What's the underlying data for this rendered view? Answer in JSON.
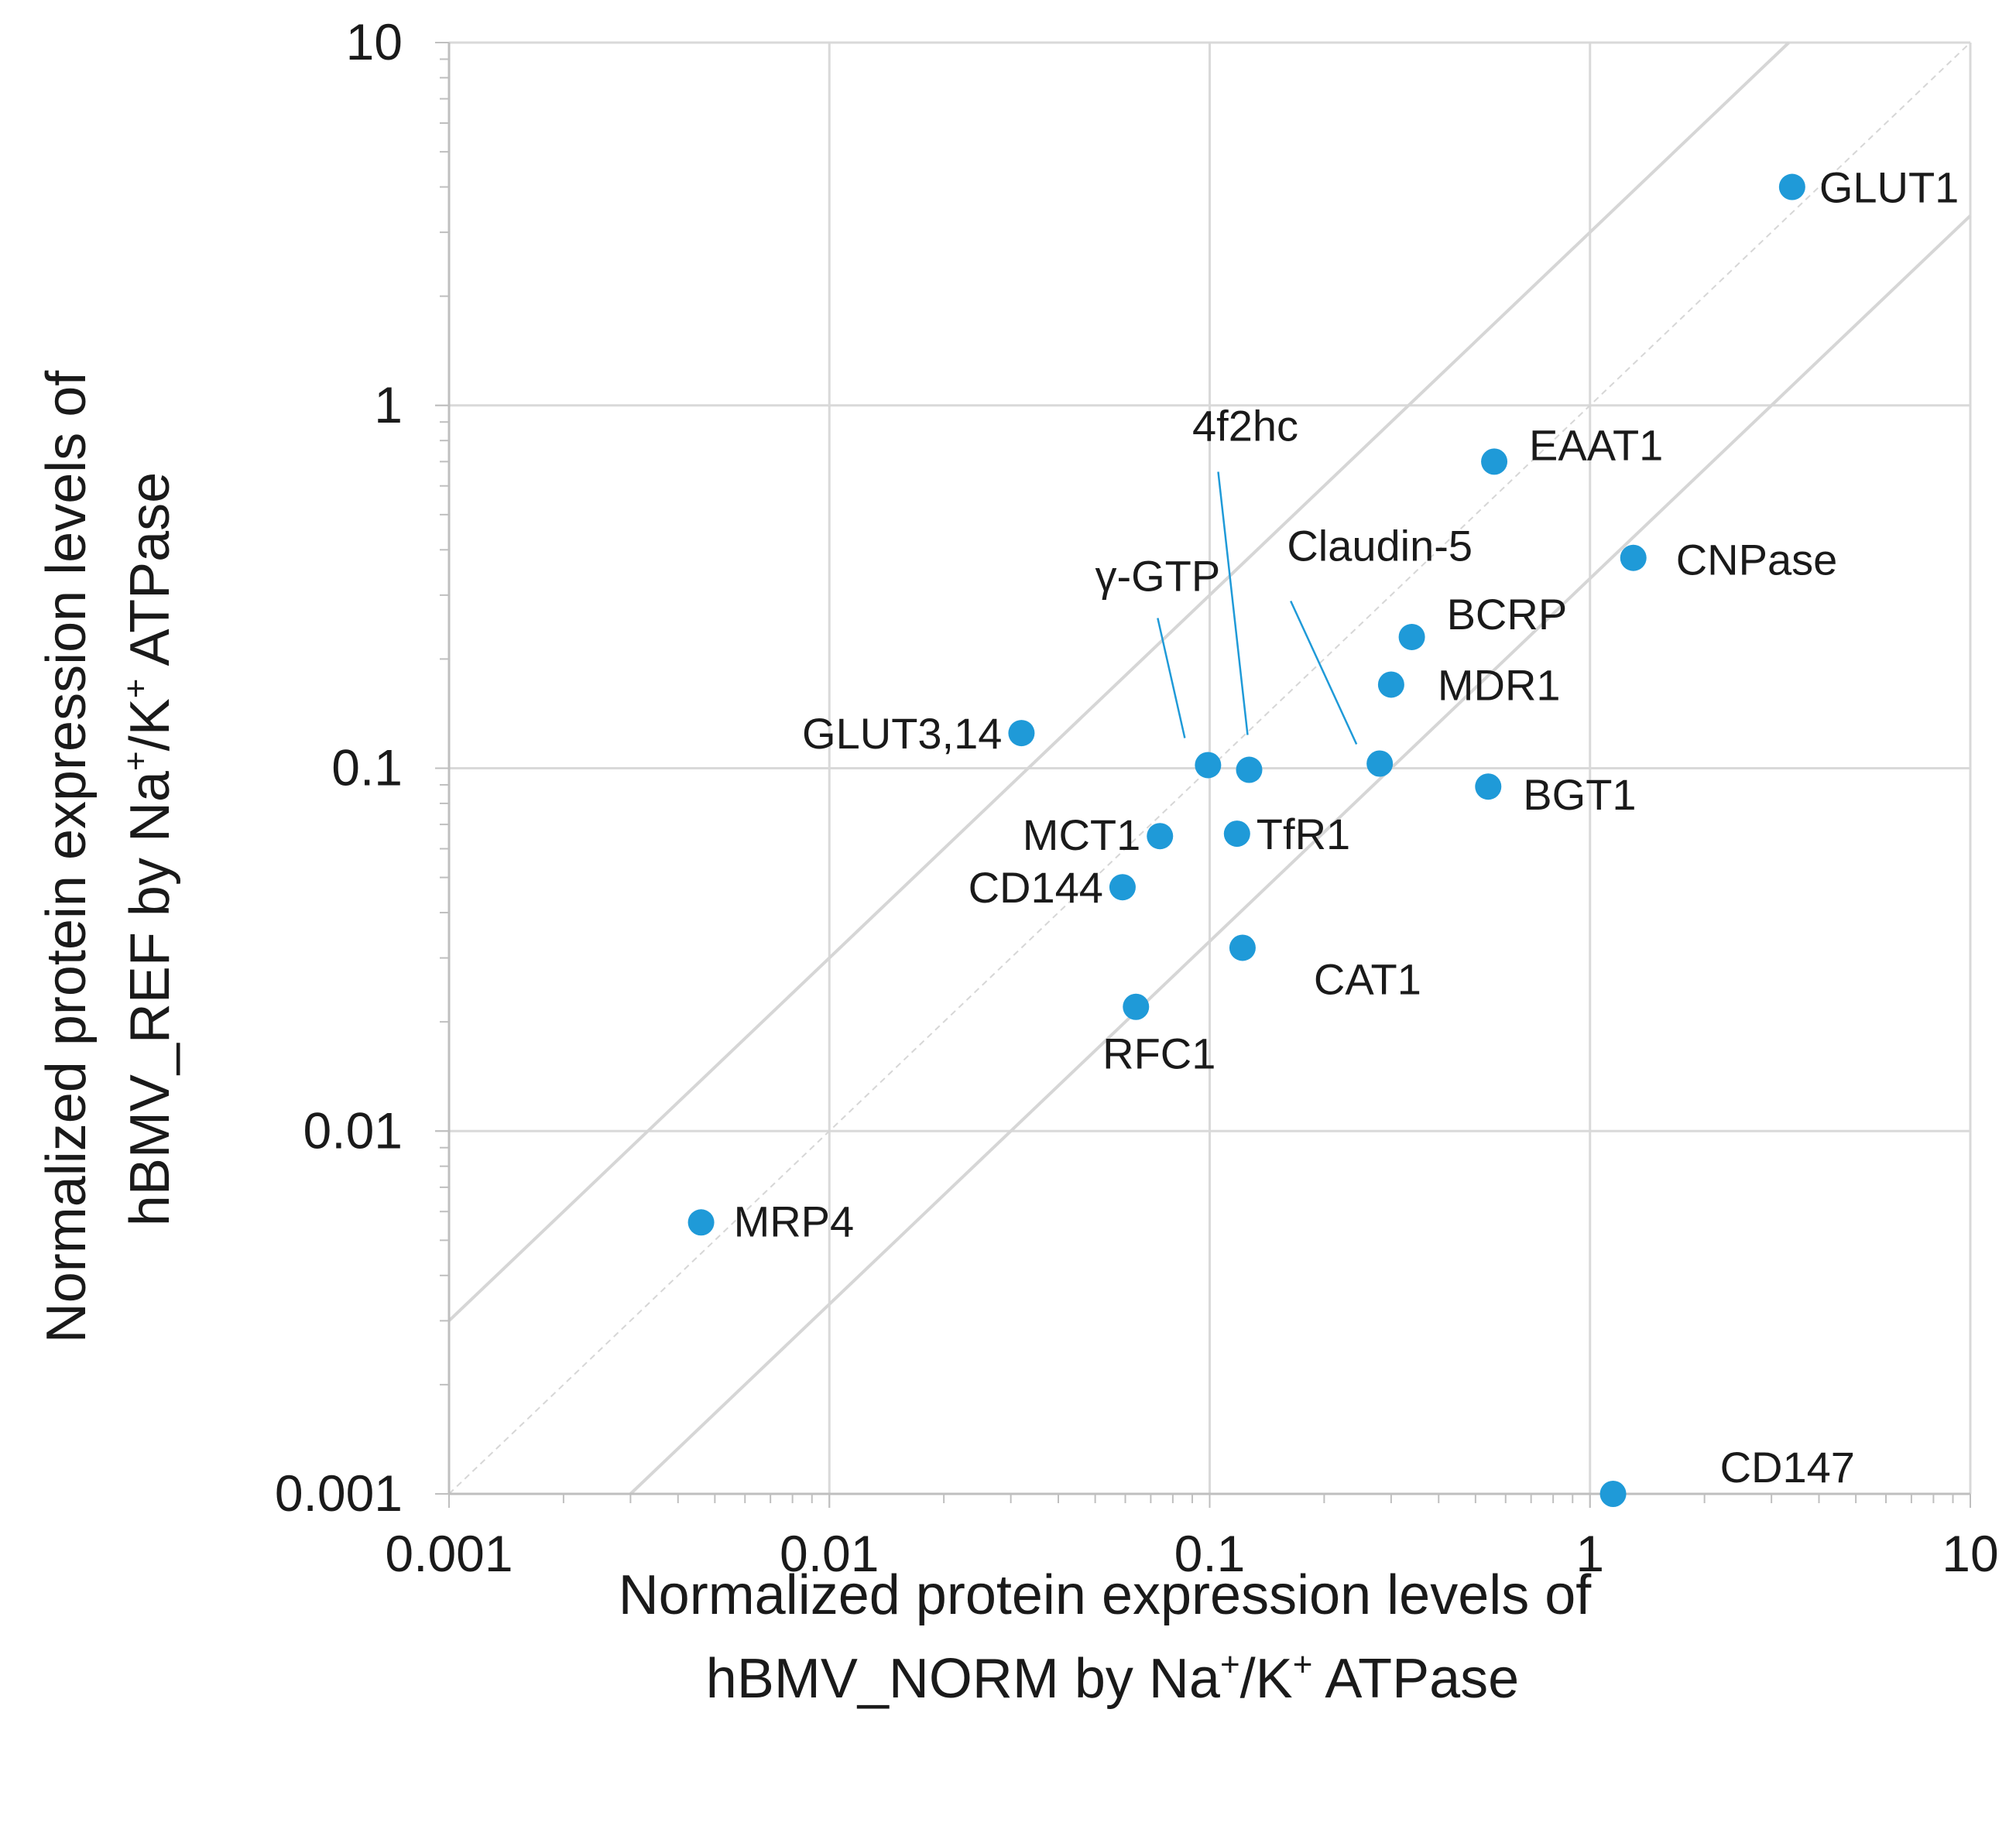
{
  "chart_data": {
    "type": "scatter",
    "scale": "log-log",
    "xlim": [
      0.001,
      10
    ],
    "ylim": [
      0.001,
      10
    ],
    "x_ticks": [
      "0.001",
      "0.01",
      "0.1",
      "1",
      "10"
    ],
    "y_ticks": [
      "0.001",
      "0.01",
      "0.1",
      "1",
      "10"
    ],
    "xlabel_line1": "Normalized protein expression levels of",
    "xlabel_line2_prefix": "hBMV_NORM by Na",
    "xlabel_line2_mid": "/K",
    "xlabel_line2_suffix": " ATPase",
    "ylabel_line1": "Normalized protein expression levels of",
    "ylabel_line2_prefix": "hBMV_REF by Na",
    "ylabel_line2_mid": "/K",
    "ylabel_line2_suffix": " ATPase",
    "superscript": "+",
    "reference_lines": [
      {
        "name": "identity",
        "factor": 1,
        "style": "dashed"
      },
      {
        "name": "upper-3x",
        "factor": 3,
        "style": "solid"
      },
      {
        "name": "lower-3x",
        "factor": 0.3333,
        "style": "solid"
      }
    ],
    "point_color": "#1f9ad8",
    "points": [
      {
        "label": "GLUT1",
        "x": 3.4,
        "y": 4.0
      },
      {
        "label": "EAAT1",
        "x": 0.56,
        "y": 0.7
      },
      {
        "label": "CNPase",
        "x": 1.3,
        "y": 0.38
      },
      {
        "label": "BCRP",
        "x": 0.34,
        "y": 0.23
      },
      {
        "label": "MDR1",
        "x": 0.3,
        "y": 0.17
      },
      {
        "label": "Claudin-5",
        "x": 0.28,
        "y": 0.103
      },
      {
        "label": "BGT1",
        "x": 0.54,
        "y": 0.089
      },
      {
        "label": "4f2hc",
        "x": 0.127,
        "y": 0.099
      },
      {
        "label": "γ-GTP",
        "x": 0.099,
        "y": 0.102
      },
      {
        "label": "GLUT3,14",
        "x": 0.032,
        "y": 0.125
      },
      {
        "label": "MCT1",
        "x": 0.074,
        "y": 0.065
      },
      {
        "label": "TfR1",
        "x": 0.118,
        "y": 0.066
      },
      {
        "label": "CD144",
        "x": 0.059,
        "y": 0.047
      },
      {
        "label": "CAT1",
        "x": 0.122,
        "y": 0.032
      },
      {
        "label": "RFC1",
        "x": 0.064,
        "y": 0.022
      },
      {
        "label": "MRP4",
        "x": 0.0046,
        "y": 0.0056
      },
      {
        "label": "CD147",
        "x": 1.15,
        "y": 0.001
      }
    ]
  }
}
